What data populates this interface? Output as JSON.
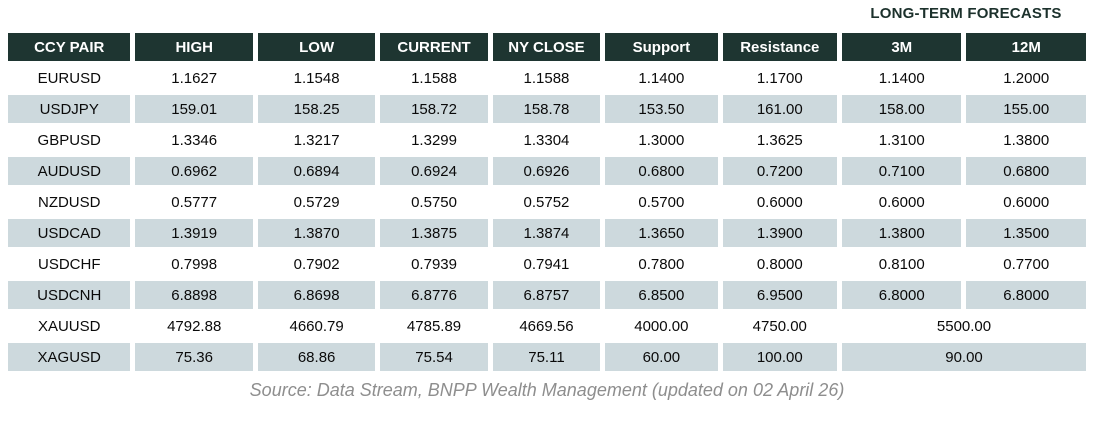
{
  "title": "LONG-TERM FORECASTS",
  "table": {
    "columns": [
      "CCY PAIR",
      "HIGH",
      "LOW",
      "CURRENT",
      "NY CLOSE",
      "Support",
      "Resistance",
      "3M",
      "12M"
    ],
    "rows": [
      {
        "pair": "EURUSD",
        "values": [
          "1.1627",
          "1.1548",
          "1.1588",
          "1.1588",
          "1.1400",
          "1.1700",
          "1.1400",
          "1.2000"
        ]
      },
      {
        "pair": "USDJPY",
        "values": [
          "159.01",
          "158.25",
          "158.72",
          "158.78",
          "153.50",
          "161.00",
          "158.00",
          "155.00"
        ]
      },
      {
        "pair": "GBPUSD",
        "values": [
          "1.3346",
          "1.3217",
          "1.3299",
          "1.3304",
          "1.3000",
          "1.3625",
          "1.3100",
          "1.3800"
        ]
      },
      {
        "pair": "AUDUSD",
        "values": [
          "0.6962",
          "0.6894",
          "0.6924",
          "0.6926",
          "0.6800",
          "0.7200",
          "0.7100",
          "0.6800"
        ]
      },
      {
        "pair": "NZDUSD",
        "values": [
          "0.5777",
          "0.5729",
          "0.5750",
          "0.5752",
          "0.5700",
          "0.6000",
          "0.6000",
          "0.6000"
        ]
      },
      {
        "pair": "USDCAD",
        "values": [
          "1.3919",
          "1.3870",
          "1.3875",
          "1.3874",
          "1.3650",
          "1.3900",
          "1.3800",
          "1.3500"
        ]
      },
      {
        "pair": "USDCHF",
        "values": [
          "0.7998",
          "0.7902",
          "0.7939",
          "0.7941",
          "0.7800",
          "0.8000",
          "0.8100",
          "0.7700"
        ]
      },
      {
        "pair": "USDCNH",
        "values": [
          "6.8898",
          "6.8698",
          "6.8776",
          "6.8757",
          "6.8500",
          "6.9500",
          "6.8000",
          "6.8000"
        ]
      },
      {
        "pair": "XAUUSD",
        "values": [
          "4792.88",
          "4660.79",
          "4785.89",
          "4669.56",
          "4000.00",
          "4750.00"
        ],
        "forecast_merged": "5500.00"
      },
      {
        "pair": "XAGUSD",
        "values": [
          "75.36",
          "68.86",
          "75.54",
          "75.11",
          "60.00",
          "100.00"
        ],
        "forecast_merged": "90.00"
      }
    ]
  },
  "footer": {
    "source": "Source: Data Stream, BNPP Wealth Management (updated on 02 April 26)"
  },
  "colors": {
    "header_bg": "#1e3531",
    "stripe_bg": "#cdd9dd",
    "header_text": "#ffffff",
    "title_text": "#1c312c",
    "source_text": "#8e8e8e"
  }
}
